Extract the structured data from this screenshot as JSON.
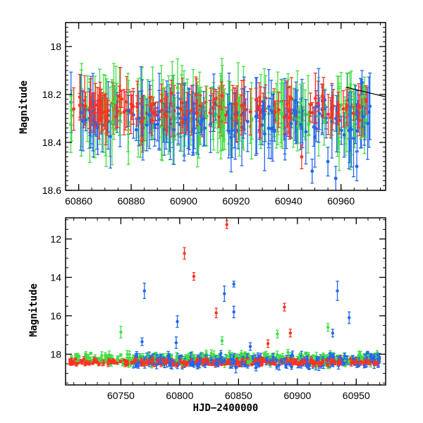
{
  "chart_data": [
    {
      "type": "scatter",
      "title": "",
      "xlabel": "",
      "ylabel": "Magnitude",
      "xlim": [
        60855,
        60977
      ],
      "ylim": [
        18.6,
        17.9
      ],
      "y_inverted": true,
      "x_ticks": [
        60860,
        60880,
        60900,
        60920,
        60940,
        60960
      ],
      "y_ticks": [
        18,
        18.2,
        18.4,
        18.6
      ],
      "grid": false,
      "series": [
        {
          "color": "#44dd44",
          "y_center": 18.28,
          "scatter": 0.09,
          "error_bar": 0.1,
          "x_range": [
            60857,
            60970
          ]
        },
        {
          "color": "#2266ee",
          "y_center": 18.3,
          "scatter": 0.09,
          "error_bar": 0.09,
          "x_range": [
            60857,
            60972
          ]
        },
        {
          "color": "#ff3322",
          "y_center": 18.26,
          "scatter": 0.07,
          "error_bar": 0.06,
          "x_range": [
            60857,
            60970
          ]
        }
      ],
      "notable_points": [
        {
          "x": 60955,
          "y": 18.48,
          "err": 0.06,
          "color": "#2266ee"
        },
        {
          "x": 60958,
          "y": 18.55,
          "err": 0.05,
          "color": "#2266ee"
        },
        {
          "x": 60966,
          "y": 18.5,
          "err": 0.06,
          "color": "#2266ee"
        },
        {
          "x": 60968,
          "y": 18.15,
          "err": 0.05,
          "color": "#2266ee"
        },
        {
          "x": 60945,
          "y": 18.46,
          "err": 0.05,
          "color": "#ff3322"
        },
        {
          "x": 60949,
          "y": 18.52,
          "err": 0.05,
          "color": "#2266ee"
        }
      ],
      "trend_line": [
        [
          60962,
          18.17
        ],
        [
          60977,
          18.21
        ]
      ]
    },
    {
      "type": "scatter",
      "title": "",
      "xlabel": "HJD−2400000",
      "ylabel": "Magnitude",
      "xlim": [
        60703,
        60975
      ],
      "ylim": [
        19.6,
        10.9
      ],
      "y_inverted": true,
      "x_ticks": [
        60750,
        60800,
        60850,
        60900,
        60950
      ],
      "y_ticks": [
        12,
        14,
        16,
        18
      ],
      "grid": false,
      "series": [
        {
          "color": "#44dd44",
          "y_center": 18.25,
          "scatter": 0.35,
          "error_bar": 0.12,
          "x_range": [
            60706,
            60970
          ]
        },
        {
          "color": "#2266ee",
          "y_center": 18.35,
          "scatter": 0.35,
          "error_bar": 0.15,
          "x_range": [
            60760,
            60970
          ]
        },
        {
          "color": "#ff3322",
          "y_center": 18.4,
          "scatter": 0.18,
          "error_bar": 0.08,
          "x_range": [
            60706,
            60970
          ]
        }
      ],
      "notable_points": [
        {
          "x": 60840,
          "y": 11.25,
          "err": 0.2,
          "color": "#ff3322"
        },
        {
          "x": 60804,
          "y": 12.75,
          "err": 0.3,
          "color": "#ff3322"
        },
        {
          "x": 60812,
          "y": 13.95,
          "err": 0.2,
          "color": "#ff3322"
        },
        {
          "x": 60770,
          "y": 14.7,
          "err": 0.4,
          "color": "#2266ee"
        },
        {
          "x": 60838,
          "y": 14.85,
          "err": 0.4,
          "color": "#2266ee"
        },
        {
          "x": 60846,
          "y": 14.35,
          "err": 0.15,
          "color": "#2266ee"
        },
        {
          "x": 60934,
          "y": 14.7,
          "err": 0.5,
          "color": "#2266ee"
        },
        {
          "x": 60846,
          "y": 15.8,
          "err": 0.3,
          "color": "#2266ee"
        },
        {
          "x": 60831,
          "y": 15.85,
          "err": 0.25,
          "color": "#ff3322"
        },
        {
          "x": 60889,
          "y": 15.55,
          "err": 0.2,
          "color": "#ff3322"
        },
        {
          "x": 60798,
          "y": 16.3,
          "err": 0.3,
          "color": "#2266ee"
        },
        {
          "x": 60944,
          "y": 16.1,
          "err": 0.3,
          "color": "#2266ee"
        },
        {
          "x": 60750,
          "y": 16.85,
          "err": 0.3,
          "color": "#44dd44"
        },
        {
          "x": 60768,
          "y": 17.35,
          "err": 0.2,
          "color": "#2266ee"
        },
        {
          "x": 60797,
          "y": 17.4,
          "err": 0.3,
          "color": "#2266ee"
        },
        {
          "x": 60860,
          "y": 17.6,
          "err": 0.2,
          "color": "#2266ee"
        },
        {
          "x": 60875,
          "y": 17.45,
          "err": 0.2,
          "color": "#ff3322"
        },
        {
          "x": 60883,
          "y": 16.95,
          "err": 0.2,
          "color": "#44dd44"
        },
        {
          "x": 60894,
          "y": 16.9,
          "err": 0.2,
          "color": "#ff3322"
        },
        {
          "x": 60836,
          "y": 17.3,
          "err": 0.2,
          "color": "#44dd44"
        },
        {
          "x": 60930,
          "y": 16.9,
          "err": 0.2,
          "color": "#2266ee"
        },
        {
          "x": 60926,
          "y": 16.6,
          "err": 0.2,
          "color": "#44dd44"
        }
      ]
    }
  ]
}
